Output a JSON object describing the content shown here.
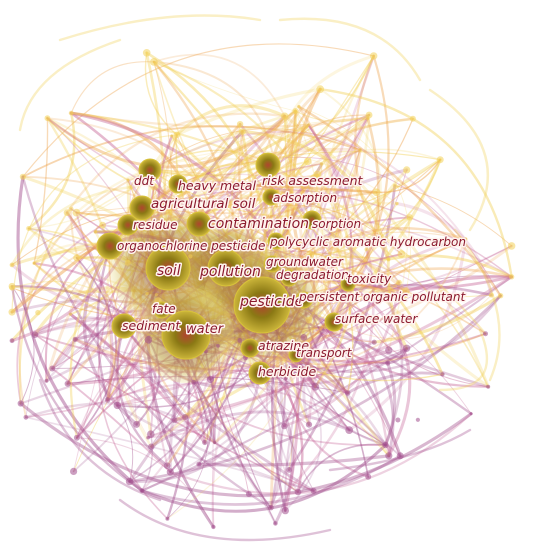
{
  "colors": {
    "edge_yellow": "#f2d15a",
    "edge_orange": "#eda24a",
    "edge_pink": "#c86a9a",
    "edge_purple": "#a2508e",
    "node_dark": "#8c7a12",
    "node_light": "#d8c23a",
    "label_text": "#8b1a2e"
  },
  "keywords": [
    {
      "id": "ddt",
      "label": "ddt"
    },
    {
      "id": "heavy_metal",
      "label": "heavy metal"
    },
    {
      "id": "risk_assessment",
      "label": "risk assessment"
    },
    {
      "id": "agricultural_soil",
      "label": "agricultural soil"
    },
    {
      "id": "adsorption",
      "label": "adsorption"
    },
    {
      "id": "residue",
      "label": "residue"
    },
    {
      "id": "contamination",
      "label": "contamination"
    },
    {
      "id": "sorption",
      "label": "sorption"
    },
    {
      "id": "organochlorine_pesticide",
      "label": "organochlorine pesticide"
    },
    {
      "id": "pah",
      "label": "polycyclic aromatic hydrocarbon"
    },
    {
      "id": "groundwater",
      "label": "groundwater"
    },
    {
      "id": "soil",
      "label": "soil"
    },
    {
      "id": "pollution",
      "label": "pollution"
    },
    {
      "id": "degradation",
      "label": "degradation"
    },
    {
      "id": "toxicity",
      "label": "toxicity"
    },
    {
      "id": "pesticide",
      "label": "pesticide"
    },
    {
      "id": "pop",
      "label": "persistent organic pollutant"
    },
    {
      "id": "fate",
      "label": "fate"
    },
    {
      "id": "surface_water",
      "label": "surface water"
    },
    {
      "id": "sediment",
      "label": "sediment"
    },
    {
      "id": "water",
      "label": "water"
    },
    {
      "id": "atrazine",
      "label": "atrazine"
    },
    {
      "id": "transport",
      "label": "transport"
    },
    {
      "id": "herbicide",
      "label": "herbicide"
    }
  ]
}
